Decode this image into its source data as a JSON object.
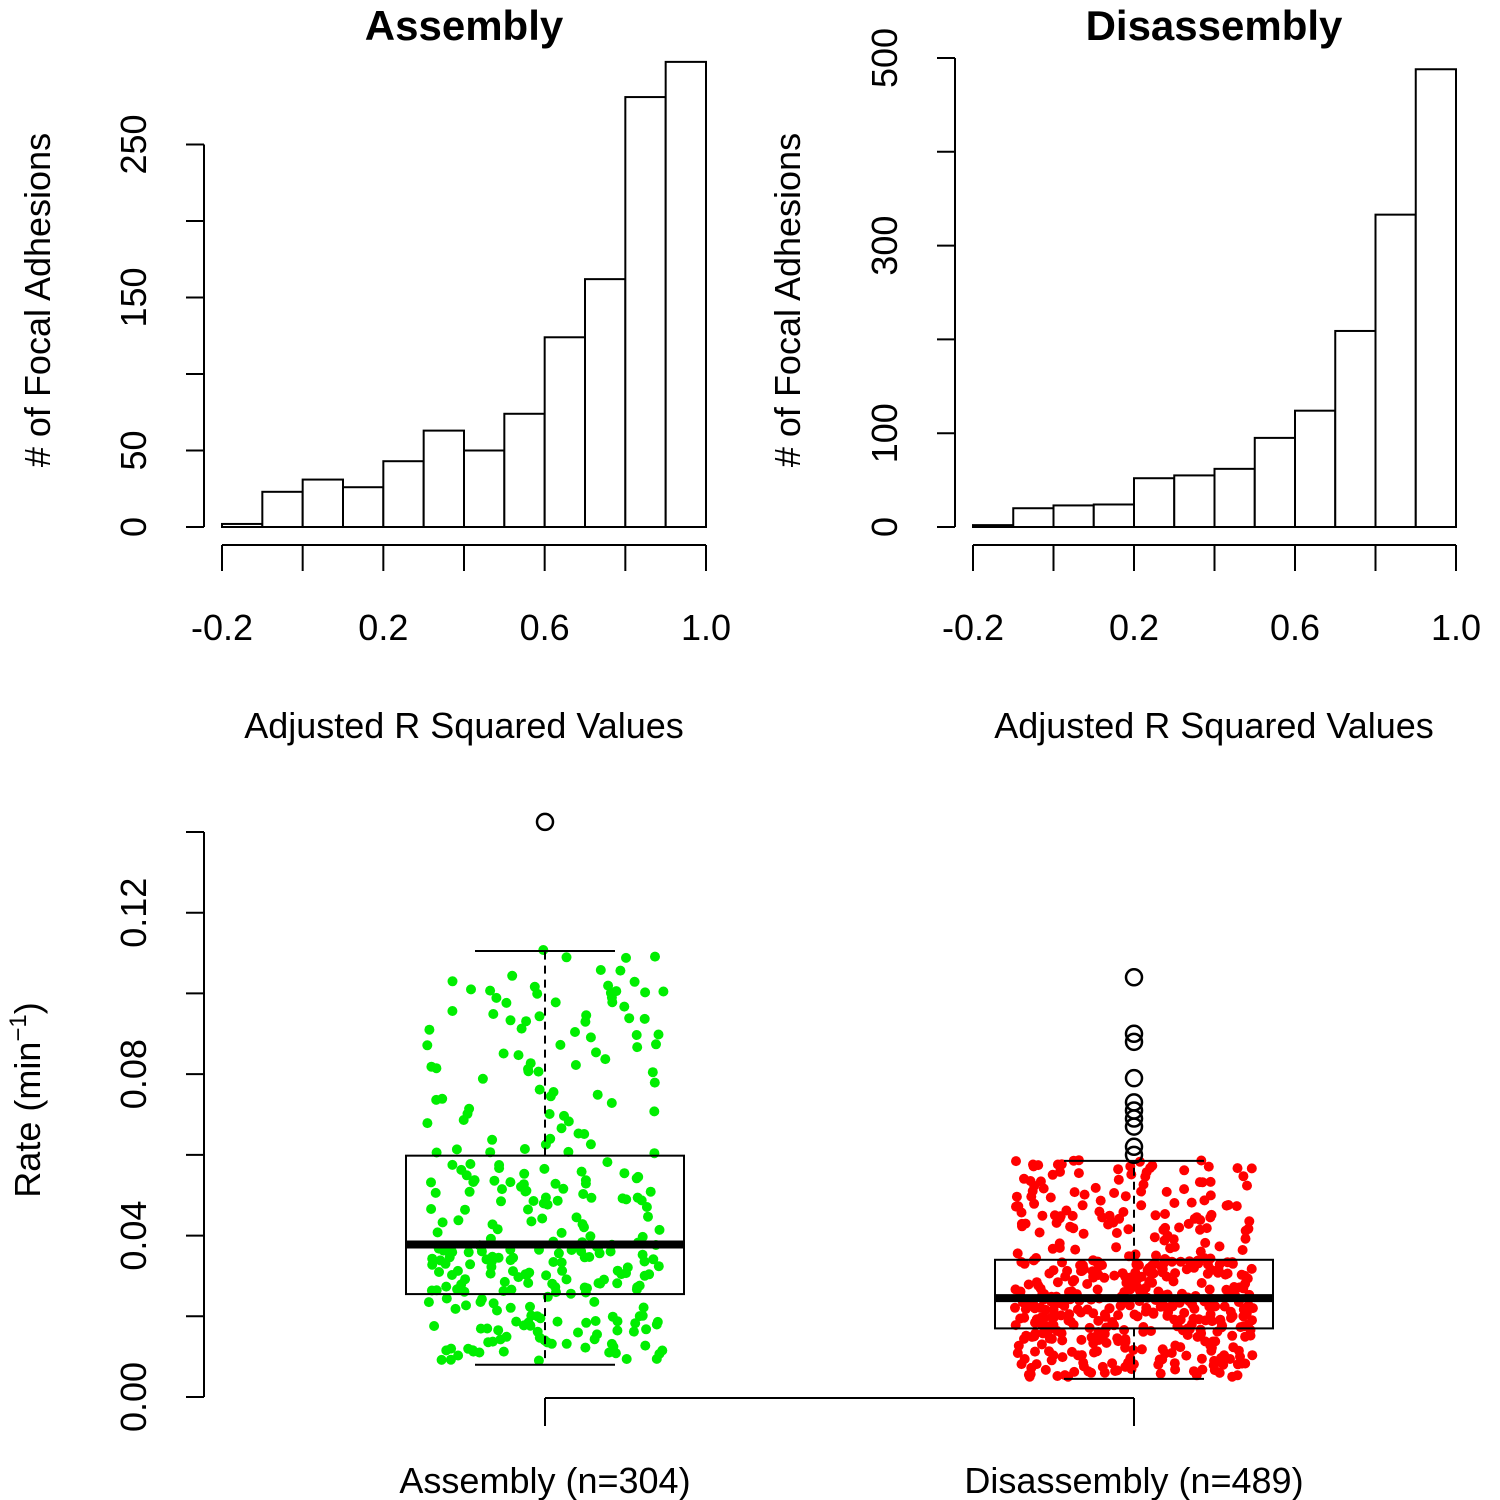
{
  "chart_data": [
    {
      "type": "bar",
      "title": "Assembly",
      "xlabel": "Adjusted R Squared Values",
      "ylabel": "# of Focal Adhesions",
      "bin_edges": [
        -0.2,
        -0.1,
        0.0,
        0.1,
        0.2,
        0.3,
        0.4,
        0.5,
        0.6,
        0.7,
        0.8,
        0.9,
        1.0
      ],
      "values": [
        2,
        23,
        31,
        26,
        43,
        63,
        50,
        74,
        124,
        162,
        281,
        304
      ],
      "xticks": [
        "-0.2",
        "0.2",
        "0.6",
        "1.0"
      ],
      "xtick_values": [
        -0.2,
        0.2,
        0.6,
        1.0
      ],
      "yticks": [
        "0",
        "50",
        "150",
        "250"
      ],
      "ytick_values": [
        0,
        50,
        150,
        250
      ],
      "yminor_values": [
        100,
        200
      ],
      "ylim": [
        0,
        300
      ],
      "xlim": [
        -0.2,
        1.0
      ],
      "grid": false
    },
    {
      "type": "bar",
      "title": "Disassembly",
      "xlabel": "Adjusted R Squared Values",
      "ylabel": "# of Focal Adhesions",
      "bin_edges": [
        -0.2,
        -0.1,
        0.0,
        0.1,
        0.2,
        0.3,
        0.4,
        0.5,
        0.6,
        0.7,
        0.8,
        0.9,
        1.0
      ],
      "values": [
        2,
        20,
        23,
        24,
        52,
        55,
        62,
        95,
        124,
        209,
        333,
        488
      ],
      "xticks": [
        "-0.2",
        "0.2",
        "0.6",
        "1.0"
      ],
      "xtick_values": [
        -0.2,
        0.2,
        0.6,
        1.0
      ],
      "yticks": [
        "0",
        "100",
        "300",
        "500"
      ],
      "ytick_values": [
        0,
        100,
        300,
        500
      ],
      "yminor_values": [
        200,
        400
      ],
      "ylim": [
        0,
        500
      ],
      "xlim": [
        -0.2,
        1.0
      ],
      "grid": false
    },
    {
      "type": "boxplot",
      "ylabel": "Rate (min",
      "ylabel_sup": "−1",
      "ylabel_close": ")",
      "yticks": [
        "0.00",
        "0.04",
        "0.08",
        "0.12"
      ],
      "ytick_values": [
        0.0,
        0.04,
        0.08,
        0.12
      ],
      "yminor_values": [
        0.02,
        0.06,
        0.1
      ],
      "ylim": [
        0,
        0.14
      ],
      "grid": false,
      "groups": [
        {
          "label": "Assembly (n=304)",
          "n": 304,
          "color": "#00ee00",
          "whisker_low": 0.008,
          "q1": 0.0255,
          "median": 0.0378,
          "q3": 0.0598,
          "whisker_high": 0.1105,
          "outliers": [
            0.1425
          ],
          "points_min": 0.009,
          "points_max": 0.111
        },
        {
          "label": "Disassembly (n=489)",
          "n": 489,
          "color": "#ff0000",
          "whisker_low": 0.0045,
          "q1": 0.017,
          "median": 0.0245,
          "q3": 0.034,
          "whisker_high": 0.0585,
          "outliers": [
            0.104,
            0.09,
            0.088,
            0.079,
            0.073,
            0.071,
            0.069,
            0.067,
            0.062,
            0.06
          ],
          "points_min": 0.005,
          "points_max": 0.059
        }
      ]
    }
  ]
}
